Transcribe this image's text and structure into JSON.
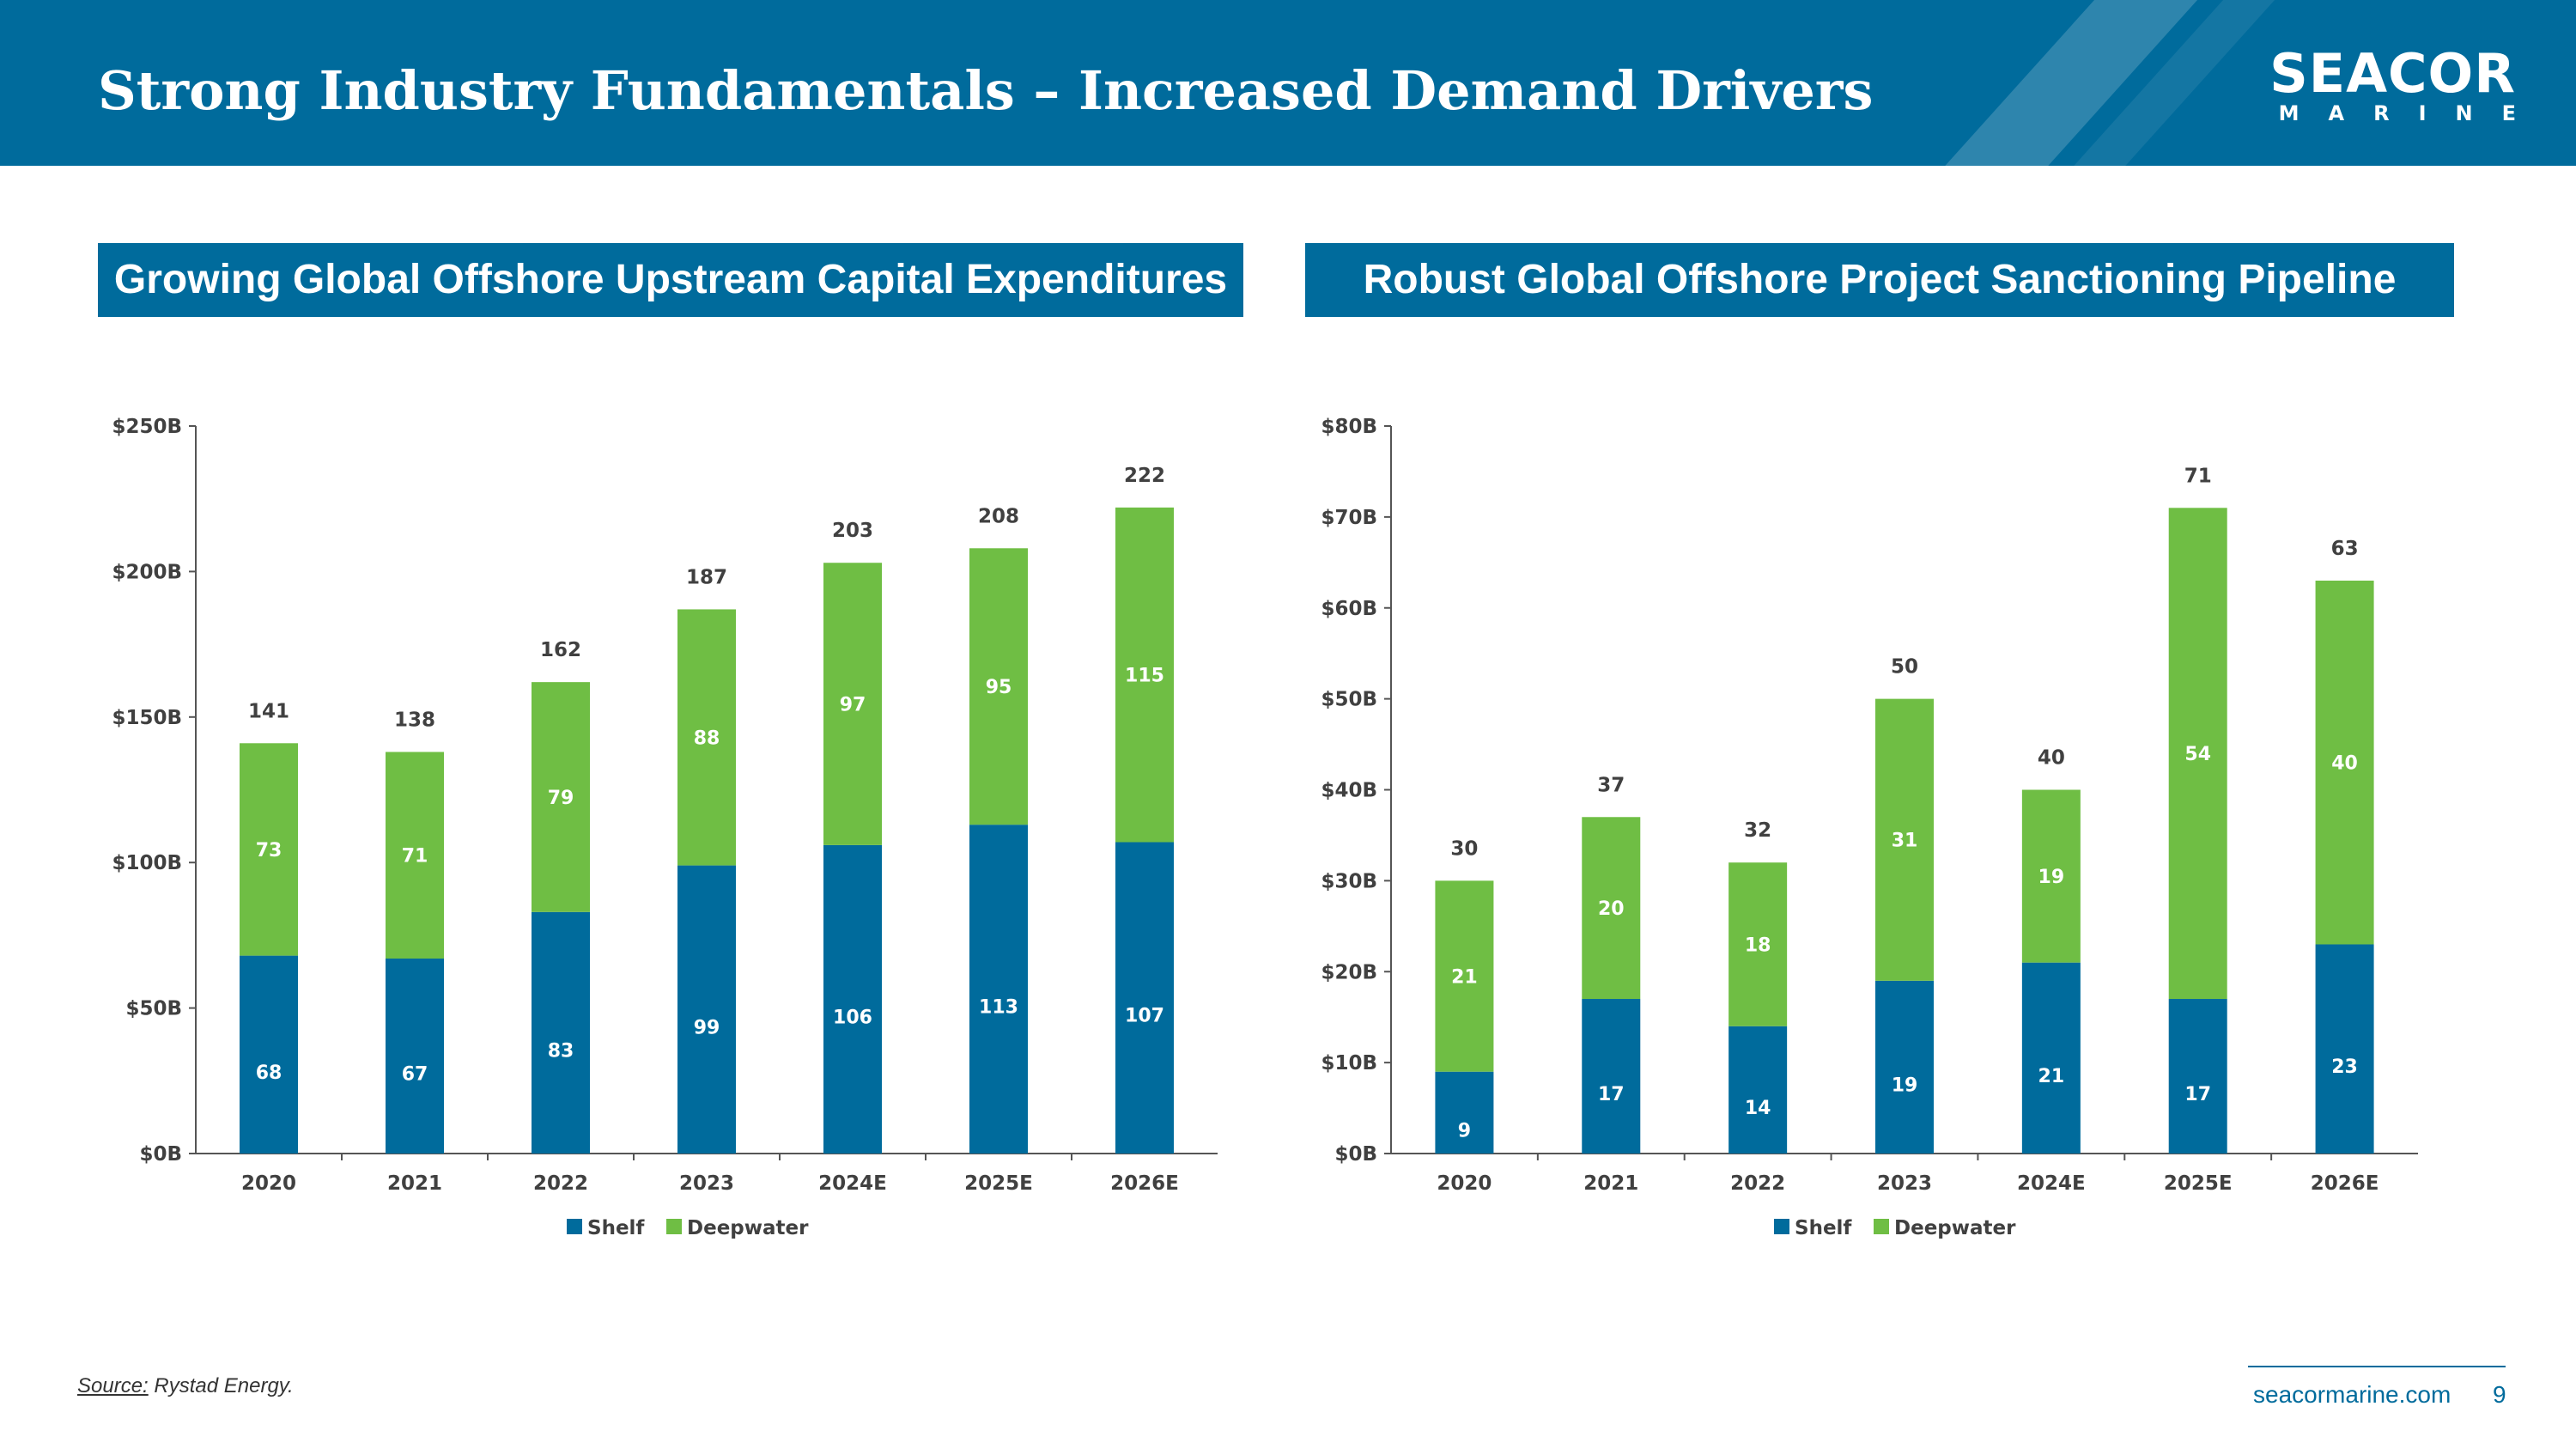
{
  "header": {
    "title": "Strong Industry Fundamentals – Increased Demand Drivers",
    "logo_top": "SEACOR",
    "logo_bottom": "MARINE"
  },
  "colors": {
    "brand": "#006b9c",
    "shelf": "#006b9c",
    "deepwater": "#6fbe44"
  },
  "panels": {
    "left_title": "Growing Global Offshore Upstream Capital Expenditures",
    "right_title": "Robust Global Offshore Project Sanctioning Pipeline"
  },
  "chart_data": [
    {
      "type": "bar",
      "stacked": true,
      "title": "Growing Global Offshore Upstream Capital Expenditures",
      "categories": [
        "2020",
        "2021",
        "2022",
        "2023",
        "2024E",
        "2025E",
        "2026E"
      ],
      "series": [
        {
          "name": "Shelf",
          "values": [
            68,
            67,
            83,
            99,
            106,
            113,
            107
          ]
        },
        {
          "name": "Deepwater",
          "values": [
            73,
            71,
            79,
            88,
            97,
            95,
            115
          ]
        }
      ],
      "totals": [
        141,
        138,
        162,
        187,
        203,
        208,
        222
      ],
      "yticks": [
        "$0B",
        "$50B",
        "$100B",
        "$150B",
        "$200B",
        "$250B"
      ],
      "ylim": [
        0,
        250
      ],
      "legend": "bottom"
    },
    {
      "type": "bar",
      "stacked": true,
      "title": "Robust Global Offshore Project Sanctioning Pipeline",
      "categories": [
        "2020",
        "2021",
        "2022",
        "2023",
        "2024E",
        "2025E",
        "2026E"
      ],
      "series": [
        {
          "name": "Shelf",
          "values": [
            9,
            17,
            14,
            19,
            21,
            17,
            23
          ]
        },
        {
          "name": "Deepwater",
          "values": [
            21,
            20,
            18,
            31,
            19,
            54,
            40
          ]
        }
      ],
      "totals": [
        30,
        37,
        32,
        50,
        40,
        71,
        63
      ],
      "yticks": [
        "$0B",
        "$10B",
        "$20B",
        "$30B",
        "$40B",
        "$50B",
        "$60B",
        "$70B",
        "$80B"
      ],
      "ylim": [
        0,
        80
      ],
      "legend": "bottom"
    }
  ],
  "footer": {
    "source_label": "Source:",
    "source_text": " Rystad Energy.",
    "url": "seacormarine.com",
    "page": "9"
  }
}
